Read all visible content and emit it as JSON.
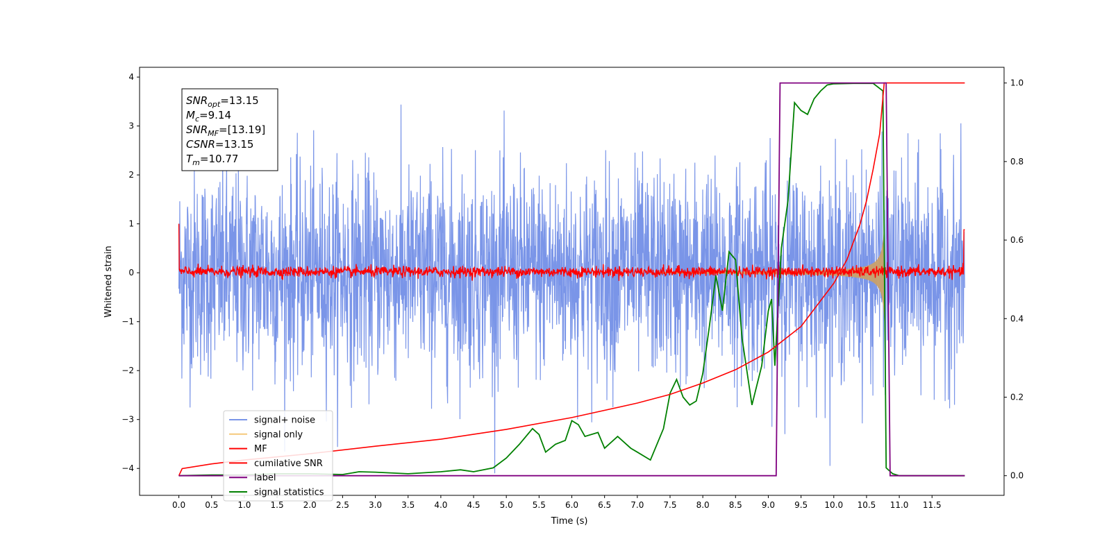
{
  "chart_data": {
    "type": "line",
    "xlabel": "Time (s)",
    "ylabel": "Whitened strain",
    "xlim": [
      -0.6,
      12.6
    ],
    "ylim": [
      -4.55,
      4.2
    ],
    "y2lim": [
      -0.05,
      1.04
    ],
    "xticks": [
      "0.0",
      "0.5",
      "1.0",
      "1.5",
      "2.0",
      "2.5",
      "3.0",
      "3.5",
      "4.0",
      "4.5",
      "5.0",
      "5.5",
      "6.0",
      "6.5",
      "7.0",
      "7.5",
      "8.0",
      "8.5",
      "9.0",
      "9.5",
      "10.0",
      "10.5",
      "11.0",
      "11.5"
    ],
    "yticks": [
      "4",
      "3",
      "2",
      "1",
      "0",
      "−1",
      "−2",
      "−3",
      "−4"
    ],
    "y2ticks": [
      "1.0",
      "0.8",
      "0.6",
      "0.4",
      "0.2",
      "0.0"
    ],
    "annotation": {
      "lines": [
        {
          "var": "SNR",
          "sub": "opt",
          "val": "=13.15"
        },
        {
          "var": "M",
          "sub": "c",
          "val": "=9.14"
        },
        {
          "var": "SNR",
          "sub": "MF",
          "val": "=[13.19]"
        },
        {
          "var": "CSNR",
          "sub": "",
          "val": "=13.15"
        },
        {
          "var": "T",
          "sub": "m",
          "val": "=10.77"
        }
      ]
    },
    "legend": {
      "location": "lower-left",
      "entries": [
        {
          "name": "signal+ noise",
          "color": "#7a95e8"
        },
        {
          "name": "signal only",
          "color": "#f5c97a"
        },
        {
          "name": "MF",
          "color": "#ff0000"
        },
        {
          "name": "cumilative SNR",
          "color": "#ff0000"
        },
        {
          "name": "label",
          "color": "#800080"
        },
        {
          "name": "signal statistics",
          "color": "#008000"
        }
      ]
    },
    "series": [
      {
        "name": "signal+ noise",
        "axis": "left",
        "color": "#7a95e8",
        "description": "whitened strain noise, std ~1, range about -4.1 to 3.8, t=0 to 12"
      },
      {
        "name": "signal only",
        "axis": "left",
        "color": "#c9a06a",
        "description": "chirp envelope growing from ~0 at t=7.5 to about +/-1.2 at t=10.75, ending at 10.77"
      },
      {
        "name": "MF",
        "axis": "left",
        "color": "#ff0000",
        "description": "matched filter output near 0 (+/-0.15), starts at 1.0 at t=0 and ends at 0.88 at t=12"
      },
      {
        "name": "cumilative SNR",
        "axis": "right",
        "color": "#ff0000",
        "x": [
          0.0,
          0.05,
          0.5,
          1.0,
          2.0,
          3.0,
          4.0,
          5.0,
          6.0,
          7.0,
          7.5,
          8.0,
          8.5,
          9.0,
          9.5,
          10.0,
          10.2,
          10.4,
          10.5,
          10.6,
          10.7,
          10.77,
          10.8,
          12.0
        ],
        "y": [
          0.0,
          0.018,
          0.03,
          0.04,
          0.056,
          0.075,
          0.093,
          0.118,
          0.148,
          0.185,
          0.207,
          0.236,
          0.27,
          0.315,
          0.38,
          0.49,
          0.55,
          0.64,
          0.7,
          0.78,
          0.87,
          1.0,
          1.0,
          1.0
        ]
      },
      {
        "name": "label",
        "axis": "right",
        "color": "#800080",
        "x": [
          0.0,
          9.12,
          9.18,
          10.8,
          10.86,
          12.0
        ],
        "y": [
          0.0,
          0.0,
          1.0,
          1.0,
          0.0,
          0.0
        ]
      },
      {
        "name": "signal statistics",
        "axis": "right",
        "color": "#008000",
        "x": [
          0.0,
          0.5,
          1.0,
          1.5,
          2.0,
          2.5,
          2.75,
          3.0,
          3.5,
          4.0,
          4.3,
          4.5,
          4.8,
          5.0,
          5.2,
          5.4,
          5.5,
          5.6,
          5.75,
          5.9,
          6.0,
          6.1,
          6.2,
          6.4,
          6.5,
          6.7,
          6.9,
          7.0,
          7.2,
          7.4,
          7.5,
          7.6,
          7.7,
          7.8,
          7.9,
          8.0,
          8.1,
          8.2,
          8.3,
          8.4,
          8.5,
          8.6,
          8.75,
          8.9,
          9.0,
          9.05,
          9.1,
          9.2,
          9.3,
          9.4,
          9.5,
          9.6,
          9.7,
          9.8,
          9.9,
          10.0,
          10.3,
          10.6,
          10.75,
          10.8,
          10.9,
          11.0,
          11.5,
          12.0
        ],
        "y": [
          0.0,
          0.002,
          0.002,
          0.005,
          0.005,
          0.003,
          0.01,
          0.009,
          0.005,
          0.01,
          0.015,
          0.01,
          0.02,
          0.045,
          0.08,
          0.12,
          0.105,
          0.06,
          0.08,
          0.09,
          0.14,
          0.13,
          0.1,
          0.11,
          0.07,
          0.1,
          0.07,
          0.06,
          0.04,
          0.12,
          0.21,
          0.245,
          0.2,
          0.18,
          0.19,
          0.26,
          0.38,
          0.51,
          0.42,
          0.57,
          0.55,
          0.35,
          0.18,
          0.28,
          0.42,
          0.45,
          0.28,
          0.58,
          0.7,
          0.95,
          0.93,
          0.92,
          0.96,
          0.98,
          0.995,
          0.998,
          0.999,
          0.999,
          0.98,
          0.02,
          0.005,
          0.0,
          0.0,
          0.0
        ]
      }
    ]
  }
}
